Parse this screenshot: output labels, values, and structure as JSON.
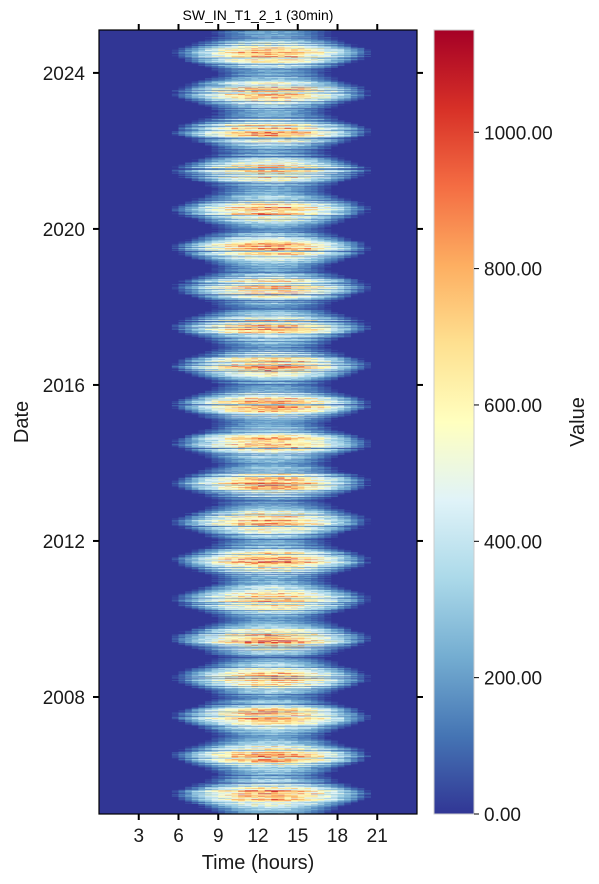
{
  "chart_data": {
    "type": "heatmap",
    "title": "SW_IN_T1_2_1 (30min)",
    "xlabel": "Time (hours)",
    "ylabel": "Date",
    "x_ticks": [
      3,
      6,
      9,
      12,
      15,
      18,
      21
    ],
    "x_tick_labels": [
      "3",
      "6",
      "9",
      "12",
      "15",
      "18",
      "21"
    ],
    "xlim": [
      0,
      24
    ],
    "y_ticks": [
      2008,
      2012,
      2016,
      2020,
      2024
    ],
    "y_tick_labels": [
      "2008",
      "2012",
      "2016",
      "2020",
      "2024"
    ],
    "ylim": [
      2005.0,
      2025.1
    ],
    "colorbar": {
      "label": "Value",
      "range": [
        0,
        1150
      ],
      "ticks": [
        0,
        200,
        400,
        600,
        800,
        1000
      ],
      "tick_labels": [
        "0.00",
        "200.00",
        "400.00",
        "600.00",
        "800.00",
        "1000.00"
      ],
      "colormap": "RdYlBu_r",
      "colors": [
        "#313695",
        "#4575b4",
        "#74add1",
        "#abd9e9",
        "#e0f3f8",
        "#ffffbf",
        "#fee090",
        "#fdae61",
        "#f46d43",
        "#d73027",
        "#a50026"
      ]
    },
    "series": [
      {
        "pattern": "seasonal diurnal shortwave radiation",
        "summer_day_start_hour": 5.5,
        "summer_day_end_hour": 20.5,
        "winter_day_start_hour": 8.5,
        "winter_day_end_hour": 17.5,
        "summer_noon_peak": 1000,
        "winter_noon_peak": 300,
        "night_value": 0
      }
    ]
  }
}
